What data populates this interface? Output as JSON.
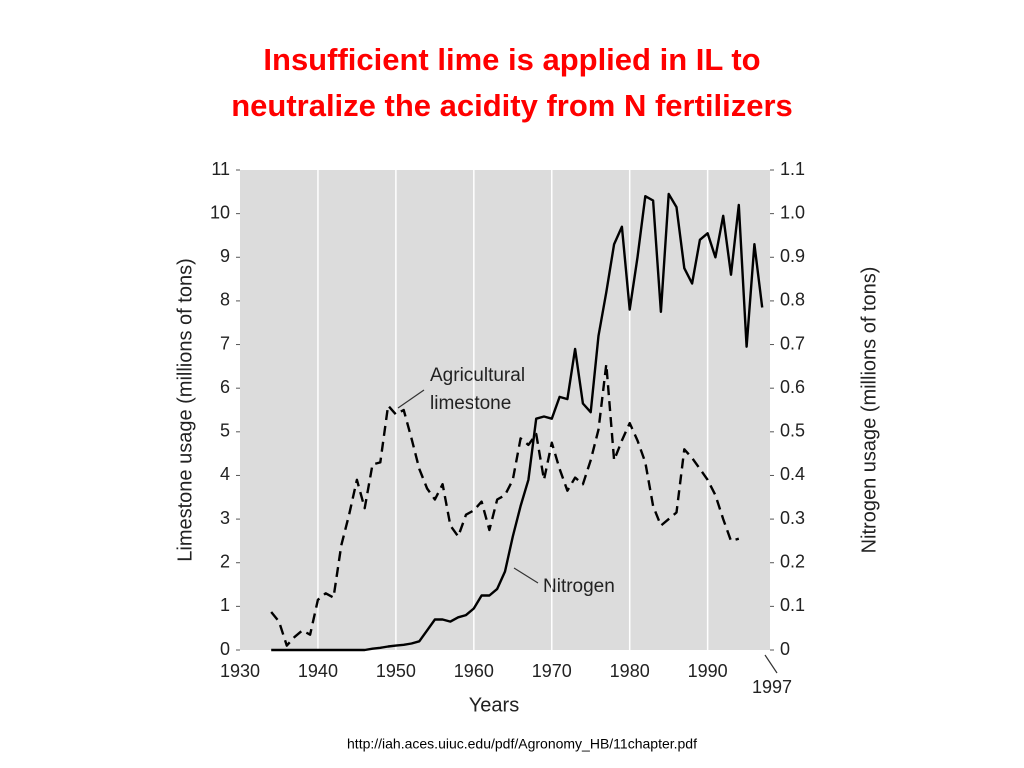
{
  "chart_data": {
    "type": "line",
    "title": [
      "Insufficient lime is applied in IL to",
      "neutralize the acidity from N fertilizers"
    ],
    "xlabel": "Years",
    "ylabel": "Limestone usage (millions of tons)",
    "y2label": "Nitrogen usage (millions of tons)",
    "annotations": [
      "Agricultural",
      "limestone",
      "Nitrogen",
      "1997"
    ],
    "source": "http://iah.aces.uiuc.edu/pdf/Agronomy_HB/11chapter.pdf",
    "xlim": [
      1930,
      1998
    ],
    "xticks": [
      1930,
      1940,
      1950,
      1960,
      1970,
      1980,
      1990
    ],
    "ylim": [
      0,
      11
    ],
    "yticks": [
      0,
      1,
      2,
      3,
      4,
      5,
      6,
      7,
      8,
      9,
      10,
      11
    ],
    "y2lim": [
      0,
      1.1
    ],
    "y2ticks": [
      0,
      0.1,
      0.2,
      0.3,
      0.4,
      0.5,
      0.6,
      0.7,
      0.8,
      0.9,
      {
        "value": 1,
        "label": "1.0"
      },
      1.1
    ],
    "grid": true,
    "x": [
      1934,
      1935,
      1936,
      1937,
      1938,
      1939,
      1940,
      1941,
      1942,
      1943,
      1944,
      1945,
      1946,
      1947,
      1948,
      1949,
      1950,
      1951,
      1952,
      1953,
      1954,
      1955,
      1956,
      1957,
      1958,
      1959,
      1960,
      1961,
      1962,
      1963,
      1964,
      1965,
      1966,
      1967,
      1968,
      1969,
      1970,
      1971,
      1972,
      1973,
      1974,
      1975,
      1976,
      1977,
      1978,
      1979,
      1980,
      1981,
      1982,
      1983,
      1984,
      1985,
      1986,
      1987,
      1988,
      1989,
      1990,
      1991,
      1992,
      1993,
      1994,
      1995,
      1996,
      1997
    ],
    "series": [
      {
        "name": "Agricultural limestone",
        "color": "#000000",
        "dash": "dashed",
        "axis": "y",
        "values": [
          0.87,
          0.65,
          0.1,
          0.3,
          0.45,
          0.35,
          1.15,
          1.3,
          1.2,
          2.4,
          3.1,
          3.9,
          3.25,
          4.25,
          4.3,
          5.6,
          5.4,
          5.5,
          4.85,
          4.15,
          3.7,
          3.45,
          3.8,
          2.85,
          2.6,
          3.1,
          3.2,
          3.4,
          2.75,
          3.45,
          3.55,
          3.9,
          4.85,
          4.7,
          4.95,
          3.9,
          4.75,
          4.15,
          3.65,
          3.95,
          3.8,
          4.35,
          5.05,
          6.55,
          4.35,
          4.8,
          5.2,
          4.8,
          4.3,
          3.3,
          2.85,
          3.0,
          3.15,
          4.6,
          4.4,
          4.15,
          3.9,
          3.55,
          3.0,
          2.5,
          2.55,
          null,
          null,
          null
        ]
      },
      {
        "name": "Nitrogen",
        "color": "#000000",
        "dash": "solid",
        "axis": "y2",
        "values": [
          0,
          0,
          0,
          0,
          0,
          0,
          0,
          0,
          0,
          0,
          0,
          0,
          0,
          0.003,
          0.005,
          0.008,
          0.01,
          0.012,
          0.015,
          0.02,
          0.045,
          0.07,
          0.07,
          0.065,
          0.075,
          0.08,
          0.095,
          0.125,
          0.125,
          0.14,
          0.18,
          0.26,
          0.33,
          0.39,
          0.53,
          0.535,
          0.53,
          0.58,
          0.575,
          0.69,
          0.565,
          0.545,
          0.72,
          0.82,
          0.93,
          0.97,
          0.78,
          0.9,
          1.04,
          1.03,
          0.775,
          1.045,
          1.015,
          0.875,
          0.84,
          0.94,
          0.955,
          0.9,
          0.995,
          0.86,
          1.02,
          0.695,
          0.93,
          0.785
        ]
      }
    ]
  }
}
